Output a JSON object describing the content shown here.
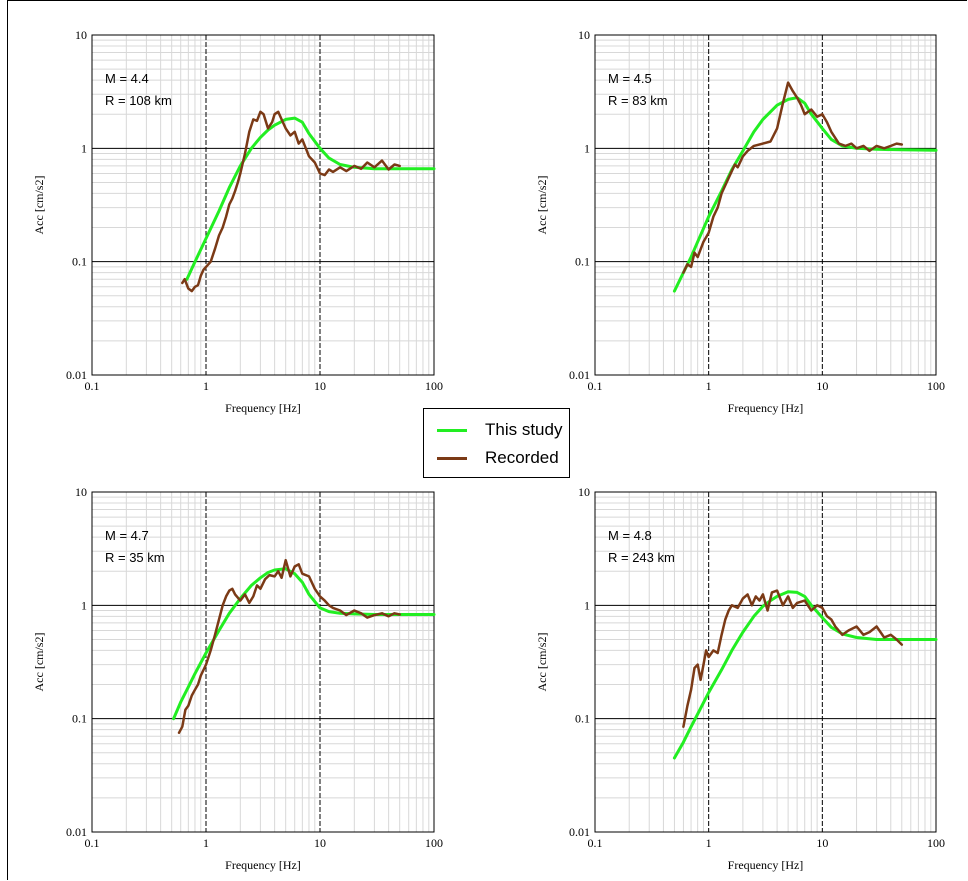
{
  "colors": {
    "this_study": "#22EE22",
    "recorded": "#7B3A16"
  },
  "legend": {
    "items": [
      {
        "label": "This study",
        "color": "#22EE22"
      },
      {
        "label": "Recorded",
        "color": "#7B3A16"
      }
    ]
  },
  "chart_data": [
    {
      "type": "line",
      "xscale": "log",
      "yscale": "log",
      "xlabel": "Frequency [Hz]",
      "ylabel": "Acc [cm/s2]",
      "xlim": [
        0.1,
        100
      ],
      "ylim": [
        0.01,
        10
      ],
      "xticks": [
        "0.1",
        "1",
        "10",
        "100"
      ],
      "yticks": [
        "0.01",
        "0.1",
        "1",
        "10"
      ],
      "grid": true,
      "annotation": [
        "M = 4.4",
        "R = 108 km"
      ],
      "series": [
        {
          "name": "This study",
          "color": "#22EE22",
          "x": [
            0.68,
            0.8,
            1.0,
            1.3,
            1.6,
            2.0,
            2.5,
            3.0,
            3.5,
            4.0,
            5.0,
            6.0,
            7.0,
            8.0,
            10,
            12,
            15,
            20,
            30,
            50,
            100
          ],
          "y": [
            0.07,
            0.1,
            0.16,
            0.28,
            0.45,
            0.7,
            1.0,
            1.25,
            1.45,
            1.6,
            1.8,
            1.85,
            1.7,
            1.35,
            1.0,
            0.82,
            0.72,
            0.68,
            0.66,
            0.66,
            0.66
          ]
        },
        {
          "name": "Recorded",
          "color": "#7B3A16",
          "x": [
            0.62,
            0.65,
            0.7,
            0.75,
            0.8,
            0.85,
            0.9,
            0.95,
            1.0,
            1.1,
            1.2,
            1.3,
            1.4,
            1.5,
            1.6,
            1.7,
            1.8,
            1.9,
            2.0,
            2.2,
            2.4,
            2.6,
            2.8,
            3.0,
            3.2,
            3.5,
            3.8,
            4.0,
            4.3,
            4.6,
            5.0,
            5.5,
            6.0,
            6.5,
            7.0,
            8.0,
            9.0,
            10,
            11,
            12,
            13,
            15,
            17,
            20,
            23,
            26,
            30,
            35,
            40,
            45,
            50
          ],
          "y": [
            0.065,
            0.07,
            0.058,
            0.055,
            0.06,
            0.062,
            0.075,
            0.085,
            0.09,
            0.1,
            0.13,
            0.17,
            0.2,
            0.25,
            0.32,
            0.36,
            0.42,
            0.5,
            0.6,
            0.9,
            1.4,
            1.8,
            1.75,
            2.1,
            2.0,
            1.5,
            1.7,
            2.0,
            2.1,
            1.8,
            1.5,
            1.3,
            1.4,
            1.1,
            1.2,
            0.85,
            0.75,
            0.6,
            0.58,
            0.65,
            0.62,
            0.68,
            0.63,
            0.7,
            0.66,
            0.75,
            0.68,
            0.78,
            0.65,
            0.72,
            0.7
          ]
        }
      ]
    },
    {
      "type": "line",
      "xscale": "log",
      "yscale": "log",
      "xlabel": "Frequency [Hz]",
      "ylabel": "Acc [cm/s2]",
      "xlim": [
        0.1,
        100
      ],
      "ylim": [
        0.01,
        10
      ],
      "xticks": [
        "0.1",
        "1",
        "10",
        "100"
      ],
      "yticks": [
        "0.01",
        "0.1",
        "1",
        "10"
      ],
      "grid": true,
      "annotation": [
        "M = 4.5",
        "R = 83 km"
      ],
      "series": [
        {
          "name": "This study",
          "color": "#22EE22",
          "x": [
            0.5,
            0.6,
            0.7,
            0.8,
            1.0,
            1.3,
            1.6,
            2.0,
            2.5,
            3.0,
            3.5,
            4.0,
            5.0,
            6.0,
            7.0,
            8.0,
            10,
            12,
            15,
            20,
            30,
            50,
            100
          ],
          "y": [
            0.055,
            0.08,
            0.11,
            0.15,
            0.25,
            0.42,
            0.65,
            0.95,
            1.4,
            1.8,
            2.1,
            2.4,
            2.7,
            2.8,
            2.5,
            2.0,
            1.5,
            1.2,
            1.05,
            1.0,
            0.98,
            0.97,
            0.96
          ]
        },
        {
          "name": "Recorded",
          "color": "#7B3A16",
          "x": [
            0.6,
            0.65,
            0.7,
            0.75,
            0.8,
            0.9,
            1.0,
            1.1,
            1.2,
            1.3,
            1.5,
            1.7,
            1.8,
            2.0,
            2.2,
            2.5,
            3.0,
            3.5,
            4.0,
            4.5,
            5.0,
            5.5,
            6.0,
            6.5,
            7.0,
            8.0,
            9.0,
            10,
            11,
            12,
            14,
            16,
            18,
            20,
            23,
            26,
            30,
            35,
            40,
            45,
            50
          ],
          "y": [
            0.08,
            0.095,
            0.09,
            0.12,
            0.11,
            0.15,
            0.18,
            0.25,
            0.3,
            0.4,
            0.55,
            0.72,
            0.68,
            0.85,
            0.95,
            1.05,
            1.1,
            1.15,
            1.5,
            2.5,
            3.8,
            3.2,
            2.8,
            2.4,
            2.0,
            2.2,
            1.9,
            2.0,
            1.7,
            1.4,
            1.1,
            1.05,
            1.1,
            1.0,
            1.05,
            0.95,
            1.05,
            1.0,
            1.05,
            1.1,
            1.08
          ]
        }
      ]
    },
    {
      "type": "line",
      "xscale": "log",
      "yscale": "log",
      "xlabel": "Frequency [Hz]",
      "ylabel": "Acc [cm/s2]",
      "xlim": [
        0.1,
        100
      ],
      "ylim": [
        0.01,
        10
      ],
      "xticks": [
        "0.1",
        "1",
        "10",
        "100"
      ],
      "yticks": [
        "0.01",
        "0.1",
        "1",
        "10"
      ],
      "grid": true,
      "annotation": [
        "M = 4.7",
        "R = 35 km"
      ],
      "series": [
        {
          "name": "This study",
          "color": "#22EE22",
          "x": [
            0.52,
            0.6,
            0.7,
            0.8,
            1.0,
            1.3,
            1.6,
            2.0,
            2.5,
            3.0,
            3.5,
            4.0,
            5.0,
            6.0,
            7.0,
            8.0,
            10,
            12,
            15,
            20,
            30,
            50,
            100
          ],
          "y": [
            0.1,
            0.14,
            0.19,
            0.25,
            0.38,
            0.6,
            0.85,
            1.15,
            1.5,
            1.75,
            1.95,
            2.05,
            2.1,
            1.9,
            1.6,
            1.25,
            0.95,
            0.88,
            0.85,
            0.84,
            0.83,
            0.83,
            0.83
          ]
        },
        {
          "name": "Recorded",
          "color": "#7B3A16",
          "x": [
            0.58,
            0.62,
            0.66,
            0.7,
            0.75,
            0.8,
            0.85,
            0.9,
            1.0,
            1.1,
            1.2,
            1.3,
            1.4,
            1.5,
            1.6,
            1.7,
            1.8,
            2.0,
            2.2,
            2.4,
            2.6,
            2.8,
            3.0,
            3.3,
            3.6,
            4.0,
            4.3,
            4.6,
            5.0,
            5.5,
            6.0,
            6.5,
            7.0,
            8.0,
            9.0,
            10,
            11,
            12,
            13,
            15,
            17,
            20,
            23,
            26,
            30,
            35,
            40,
            45,
            50
          ],
          "y": [
            0.075,
            0.085,
            0.12,
            0.13,
            0.16,
            0.18,
            0.2,
            0.24,
            0.3,
            0.4,
            0.55,
            0.75,
            1.0,
            1.2,
            1.35,
            1.4,
            1.25,
            1.1,
            1.25,
            1.05,
            1.2,
            1.5,
            1.4,
            1.7,
            1.85,
            1.8,
            2.0,
            1.75,
            2.5,
            1.8,
            2.2,
            2.3,
            1.9,
            1.8,
            1.4,
            1.2,
            1.1,
            1.0,
            0.95,
            0.9,
            0.82,
            0.9,
            0.85,
            0.78,
            0.82,
            0.85,
            0.8,
            0.85,
            0.83
          ]
        }
      ]
    },
    {
      "type": "line",
      "xscale": "log",
      "yscale": "log",
      "xlabel": "Frequency [Hz]",
      "ylabel": "Acc [cm/s2]",
      "xlim": [
        0.1,
        100
      ],
      "ylim": [
        0.01,
        10
      ],
      "xticks": [
        "0.1",
        "1",
        "10",
        "100"
      ],
      "yticks": [
        "0.01",
        "0.1",
        "1",
        "10"
      ],
      "grid": true,
      "annotation": [
        "M = 4.8",
        "R = 243 km"
      ],
      "series": [
        {
          "name": "This study",
          "color": "#22EE22",
          "x": [
            0.5,
            0.6,
            0.7,
            0.8,
            1.0,
            1.3,
            1.6,
            2.0,
            2.5,
            3.0,
            3.5,
            4.0,
            5.0,
            6.0,
            7.0,
            8.0,
            10,
            12,
            15,
            20,
            30,
            50,
            100
          ],
          "y": [
            0.045,
            0.062,
            0.085,
            0.11,
            0.17,
            0.27,
            0.4,
            0.58,
            0.8,
            0.98,
            1.1,
            1.2,
            1.32,
            1.3,
            1.2,
            1.0,
            0.78,
            0.64,
            0.56,
            0.52,
            0.5,
            0.5,
            0.5
          ]
        },
        {
          "name": "Recorded",
          "color": "#7B3A16",
          "x": [
            0.6,
            0.65,
            0.7,
            0.75,
            0.8,
            0.85,
            0.9,
            0.95,
            1.0,
            1.1,
            1.2,
            1.3,
            1.4,
            1.5,
            1.6,
            1.8,
            2.0,
            2.2,
            2.4,
            2.6,
            2.8,
            3.0,
            3.3,
            3.6,
            4.0,
            4.5,
            5.0,
            5.5,
            6.0,
            7.0,
            8.0,
            9.0,
            10,
            11,
            12,
            13,
            15,
            17,
            20,
            23,
            26,
            30,
            35,
            40,
            45,
            50
          ],
          "y": [
            0.085,
            0.13,
            0.18,
            0.28,
            0.3,
            0.22,
            0.3,
            0.4,
            0.35,
            0.4,
            0.38,
            0.55,
            0.75,
            0.9,
            1.0,
            0.95,
            1.15,
            1.25,
            1.0,
            1.2,
            1.1,
            1.25,
            0.9,
            1.3,
            1.35,
            1.0,
            1.2,
            0.95,
            1.05,
            1.1,
            0.9,
            1.0,
            0.95,
            0.8,
            0.75,
            0.65,
            0.55,
            0.6,
            0.65,
            0.55,
            0.58,
            0.65,
            0.52,
            0.55,
            0.5,
            0.45
          ]
        }
      ]
    }
  ]
}
